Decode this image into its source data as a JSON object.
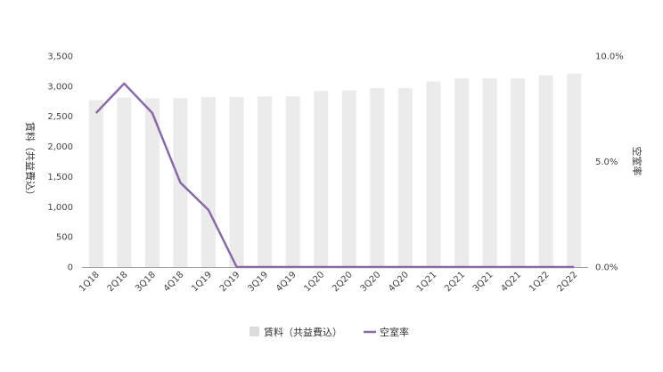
{
  "chart_data": {
    "type": "bar",
    "categories": [
      "1Q18",
      "2Q18",
      "3Q18",
      "4Q18",
      "1Q19",
      "2Q19",
      "3Q19",
      "4Q19",
      "1Q20",
      "2Q20",
      "3Q20",
      "4Q20",
      "1Q21",
      "2Q21",
      "3Q21",
      "4Q21",
      "1Q22",
      "2Q22"
    ],
    "series": [
      {
        "name": "賃料（共益費込）",
        "type": "bar",
        "axis": "left",
        "color": "#ebebeb",
        "values": [
          2770,
          2810,
          2800,
          2800,
          2820,
          2820,
          2830,
          2830,
          2920,
          2930,
          2970,
          2970,
          3080,
          3130,
          3130,
          3130,
          3180,
          3210
        ]
      },
      {
        "name": "空室率",
        "type": "line",
        "axis": "right",
        "color": "#8a6aa6",
        "values": [
          7.3,
          8.7,
          7.3,
          4.0,
          2.7,
          0.0,
          0.0,
          0.0,
          0.0,
          0.0,
          0.0,
          0.0,
          0.0,
          0.0,
          0.0,
          0.0,
          0.0,
          0.0
        ]
      }
    ],
    "ylabel_left": "賃料（共益費込）",
    "ylabel_right": "空室率",
    "ylim_left": [
      0,
      3500
    ],
    "ylim_right": [
      0,
      10
    ],
    "yticks_left": [
      "0",
      "500",
      "1,000",
      "1,500",
      "2,000",
      "2,500",
      "3,000",
      "3,500"
    ],
    "yticks_right": [
      "0.0%",
      "5.0%",
      "10.0%"
    ],
    "grid": false,
    "legend_position": "bottom"
  }
}
